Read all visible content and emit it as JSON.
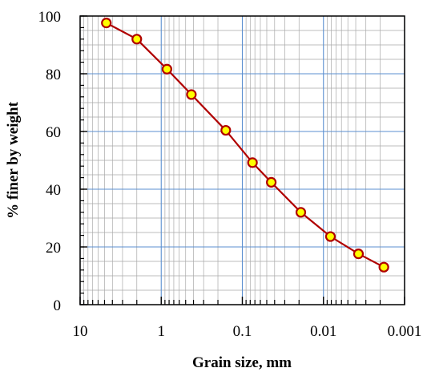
{
  "chart_data": {
    "type": "line",
    "xlabel": "Grain size, mm",
    "ylabel": "% finer by weight",
    "x_scale": "log",
    "x_reversed": true,
    "xlim": [
      10,
      0.001
    ],
    "ylim": [
      0,
      100
    ],
    "x_ticks": [
      10,
      1,
      0.1,
      0.01,
      0.001
    ],
    "x_tick_labels": [
      "10",
      "1",
      "0.1",
      "0.01",
      "0.001"
    ],
    "y_ticks": [
      0,
      20,
      40,
      60,
      80,
      100
    ],
    "y_tick_labels": [
      "0",
      "20",
      "40",
      "60",
      "80",
      "100"
    ],
    "grid": true,
    "series": [
      {
        "x": [
          4.75,
          2.0,
          0.85,
          0.425,
          0.16,
          0.075,
          0.044,
          0.019,
          0.0082,
          0.0037,
          0.0018
        ],
        "y": [
          97.6,
          92.0,
          81.6,
          72.8,
          60.4,
          49.2,
          42.4,
          32.0,
          23.6,
          17.6,
          13.0
        ]
      }
    ],
    "colors": {
      "line": "#b00000",
      "marker_fill": "#ffff00",
      "marker_edge": "#b00000",
      "major_grid": "#5b8fd0",
      "minor_grid": "#a9a9a9"
    }
  }
}
